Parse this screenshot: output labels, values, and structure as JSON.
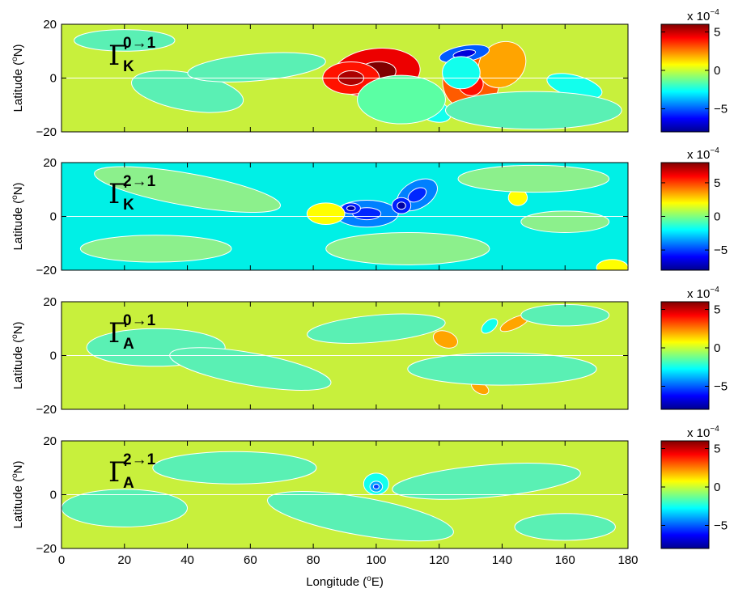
{
  "chart_data": [
    {
      "type": "heatmap",
      "panel_label": {
        "symbol": "Γ",
        "superscript": "0→1",
        "subscript": "K"
      },
      "xlabel": "",
      "ylabel": "Latitude (",
      "ylabel_sup": "o",
      "ylabel_unit": "N)",
      "xlim": [
        0,
        180
      ],
      "ylim": [
        -20,
        20
      ],
      "yticks": [
        "−20",
        "0",
        "20"
      ],
      "colorbar": {
        "exponent_label": "x 10",
        "exponent_sup": "−4",
        "clim": [
          -8,
          6
        ],
        "ticks": [
          {
            "v": 5,
            "label": "5"
          },
          {
            "v": 0,
            "label": "0"
          },
          {
            "v": -5,
            "label": "−5"
          }
        ]
      },
      "features": [
        {
          "lon": 100,
          "lat": 2,
          "value": 4.5,
          "shape": [
            14,
            9,
            -6
          ]
        },
        {
          "lon": 92,
          "lat": 0,
          "value": 4,
          "shape": [
            9,
            6,
            0
          ]
        },
        {
          "lon": 130,
          "lat": -2,
          "value": 3,
          "shape": [
            9,
            10,
            30
          ]
        },
        {
          "lon": 140,
          "lat": 5,
          "value": 2,
          "shape": [
            8,
            8,
            -40
          ]
        },
        {
          "lon": 128,
          "lat": 9,
          "value": -5,
          "shape": [
            8,
            3,
            -10
          ]
        },
        {
          "lon": 118,
          "lat": -12,
          "value": -2.5,
          "shape": [
            6,
            4,
            20
          ]
        },
        {
          "lon": 127,
          "lat": 2,
          "value": -2.5,
          "shape": [
            6,
            6,
            0
          ]
        },
        {
          "lon": 163,
          "lat": -3,
          "value": -2.5,
          "shape": [
            9,
            4,
            15
          ]
        },
        {
          "lon": 108,
          "lat": -8,
          "value": -1.5,
          "shape": [
            14,
            9,
            0
          ]
        },
        {
          "lon": 20,
          "lat": 14,
          "value": -1,
          "shape": [
            16,
            4,
            0
          ]
        },
        {
          "lon": 40,
          "lat": -5,
          "value": -1,
          "shape": [
            18,
            7,
            10
          ]
        },
        {
          "lon": 62,
          "lat": 4,
          "value": -1,
          "shape": [
            22,
            5,
            -5
          ]
        },
        {
          "lon": 150,
          "lat": -12,
          "value": -1,
          "shape": [
            28,
            7,
            0
          ]
        }
      ]
    },
    {
      "type": "heatmap",
      "panel_label": {
        "symbol": "Γ",
        "superscript": "2→1",
        "subscript": "K"
      },
      "xlabel": "",
      "ylabel": "Latitude (",
      "ylabel_sup": "o",
      "ylabel_unit": "N)",
      "xlim": [
        0,
        180
      ],
      "ylim": [
        -20,
        20
      ],
      "yticks": [
        "−20",
        "0",
        "20"
      ],
      "colorbar": {
        "exponent_label": "x 10",
        "exponent_sup": "−4",
        "clim": [
          -8,
          8
        ],
        "ticks": [
          {
            "v": 5,
            "label": "5"
          },
          {
            "v": 0,
            "label": "0"
          },
          {
            "v": -5,
            "label": "−5"
          }
        ]
      },
      "features": [
        {
          "lon": 97,
          "lat": 1,
          "value": -4,
          "shape": [
            10,
            5,
            0
          ]
        },
        {
          "lon": 113,
          "lat": 8,
          "value": -4,
          "shape": [
            7,
            5,
            -30
          ]
        },
        {
          "lon": 92,
          "lat": 3,
          "value": -5.5,
          "shape": [
            3,
            2,
            0
          ]
        },
        {
          "lon": 108,
          "lat": 4,
          "value": -5.5,
          "shape": [
            3,
            3,
            0
          ]
        },
        {
          "lon": 84,
          "lat": 1,
          "value": 2,
          "shape": [
            6,
            4,
            0
          ]
        },
        {
          "lon": 145,
          "lat": 7,
          "value": 2,
          "shape": [
            3,
            3,
            0
          ]
        },
        {
          "lon": 175,
          "lat": -19,
          "value": 2,
          "shape": [
            5,
            3,
            0
          ]
        },
        {
          "lon": 110,
          "lat": -12,
          "value": 0.5,
          "shape": [
            26,
            6,
            0
          ]
        },
        {
          "lon": 40,
          "lat": 10,
          "value": 0.5,
          "shape": [
            30,
            6,
            10
          ]
        },
        {
          "lon": 150,
          "lat": 14,
          "value": 0.5,
          "shape": [
            24,
            5,
            0
          ]
        },
        {
          "lon": 30,
          "lat": -12,
          "value": 0.5,
          "shape": [
            24,
            5,
            0
          ]
        },
        {
          "lon": 160,
          "lat": -2,
          "value": 0.5,
          "shape": [
            14,
            4,
            0
          ]
        }
      ]
    },
    {
      "type": "heatmap",
      "panel_label": {
        "symbol": "Γ",
        "superscript": "0→1",
        "subscript": "A"
      },
      "xlabel": "",
      "ylabel": "Latitude (",
      "ylabel_sup": "o",
      "ylabel_unit": "N)",
      "xlim": [
        0,
        180
      ],
      "ylim": [
        -20,
        20
      ],
      "yticks": [
        "−20",
        "0",
        "20"
      ],
      "colorbar": {
        "exponent_label": "x 10",
        "exponent_sup": "−4",
        "clim": [
          -8,
          6
        ],
        "ticks": [
          {
            "v": 5,
            "label": "5"
          },
          {
            "v": 0,
            "label": "0"
          },
          {
            "v": -5,
            "label": "−5"
          }
        ]
      },
      "features": [
        {
          "lon": 122,
          "lat": 6,
          "value": 2,
          "shape": [
            4,
            3,
            20
          ]
        },
        {
          "lon": 144,
          "lat": 12,
          "value": 2,
          "shape": [
            5,
            2,
            -25
          ]
        },
        {
          "lon": 133,
          "lat": -12,
          "value": 2,
          "shape": [
            3,
            2,
            30
          ]
        },
        {
          "lon": 136,
          "lat": 11,
          "value": -2.5,
          "shape": [
            3,
            2,
            -40
          ]
        },
        {
          "lon": 30,
          "lat": 3,
          "value": -1,
          "shape": [
            22,
            7,
            0
          ]
        },
        {
          "lon": 60,
          "lat": -5,
          "value": -1,
          "shape": [
            26,
            6,
            10
          ]
        },
        {
          "lon": 100,
          "lat": 10,
          "value": -1,
          "shape": [
            22,
            5,
            -5
          ]
        },
        {
          "lon": 140,
          "lat": -5,
          "value": -1,
          "shape": [
            30,
            6,
            0
          ]
        },
        {
          "lon": 160,
          "lat": 15,
          "value": -1,
          "shape": [
            14,
            4,
            0
          ]
        }
      ]
    },
    {
      "type": "heatmap",
      "panel_label": {
        "symbol": "Γ",
        "superscript": "2→1",
        "subscript": "A"
      },
      "xlabel": "Longitude (",
      "xlabel_sup": "o",
      "xlabel_unit": "E)",
      "ylabel": "Latitude (",
      "ylabel_sup": "o",
      "ylabel_unit": "N)",
      "xlim": [
        0,
        180
      ],
      "ylim": [
        -20,
        20
      ],
      "xticks": [
        "0",
        "20",
        "40",
        "60",
        "80",
        "100",
        "120",
        "140",
        "160",
        "180"
      ],
      "yticks": [
        "−20",
        "0",
        "20"
      ],
      "colorbar": {
        "exponent_label": "x 10",
        "exponent_sup": "−4",
        "clim": [
          -8,
          6
        ],
        "ticks": [
          {
            "v": 5,
            "label": "5"
          },
          {
            "v": 0,
            "label": "0"
          },
          {
            "v": -5,
            "label": "−5"
          }
        ]
      },
      "features": [
        {
          "lon": 100,
          "lat": 4,
          "value": -2.5,
          "shape": [
            4,
            4,
            0
          ]
        },
        {
          "lon": 100,
          "lat": 3,
          "value": -4,
          "shape": [
            2,
            2,
            0
          ]
        },
        {
          "lon": 20,
          "lat": -5,
          "value": -1,
          "shape": [
            20,
            7,
            0
          ]
        },
        {
          "lon": 55,
          "lat": 10,
          "value": -1,
          "shape": [
            26,
            6,
            0
          ]
        },
        {
          "lon": 95,
          "lat": -8,
          "value": -1,
          "shape": [
            30,
            7,
            10
          ]
        },
        {
          "lon": 135,
          "lat": 5,
          "value": -1,
          "shape": [
            30,
            6,
            -5
          ]
        },
        {
          "lon": 160,
          "lat": -12,
          "value": -1,
          "shape": [
            16,
            5,
            0
          ]
        }
      ]
    }
  ]
}
